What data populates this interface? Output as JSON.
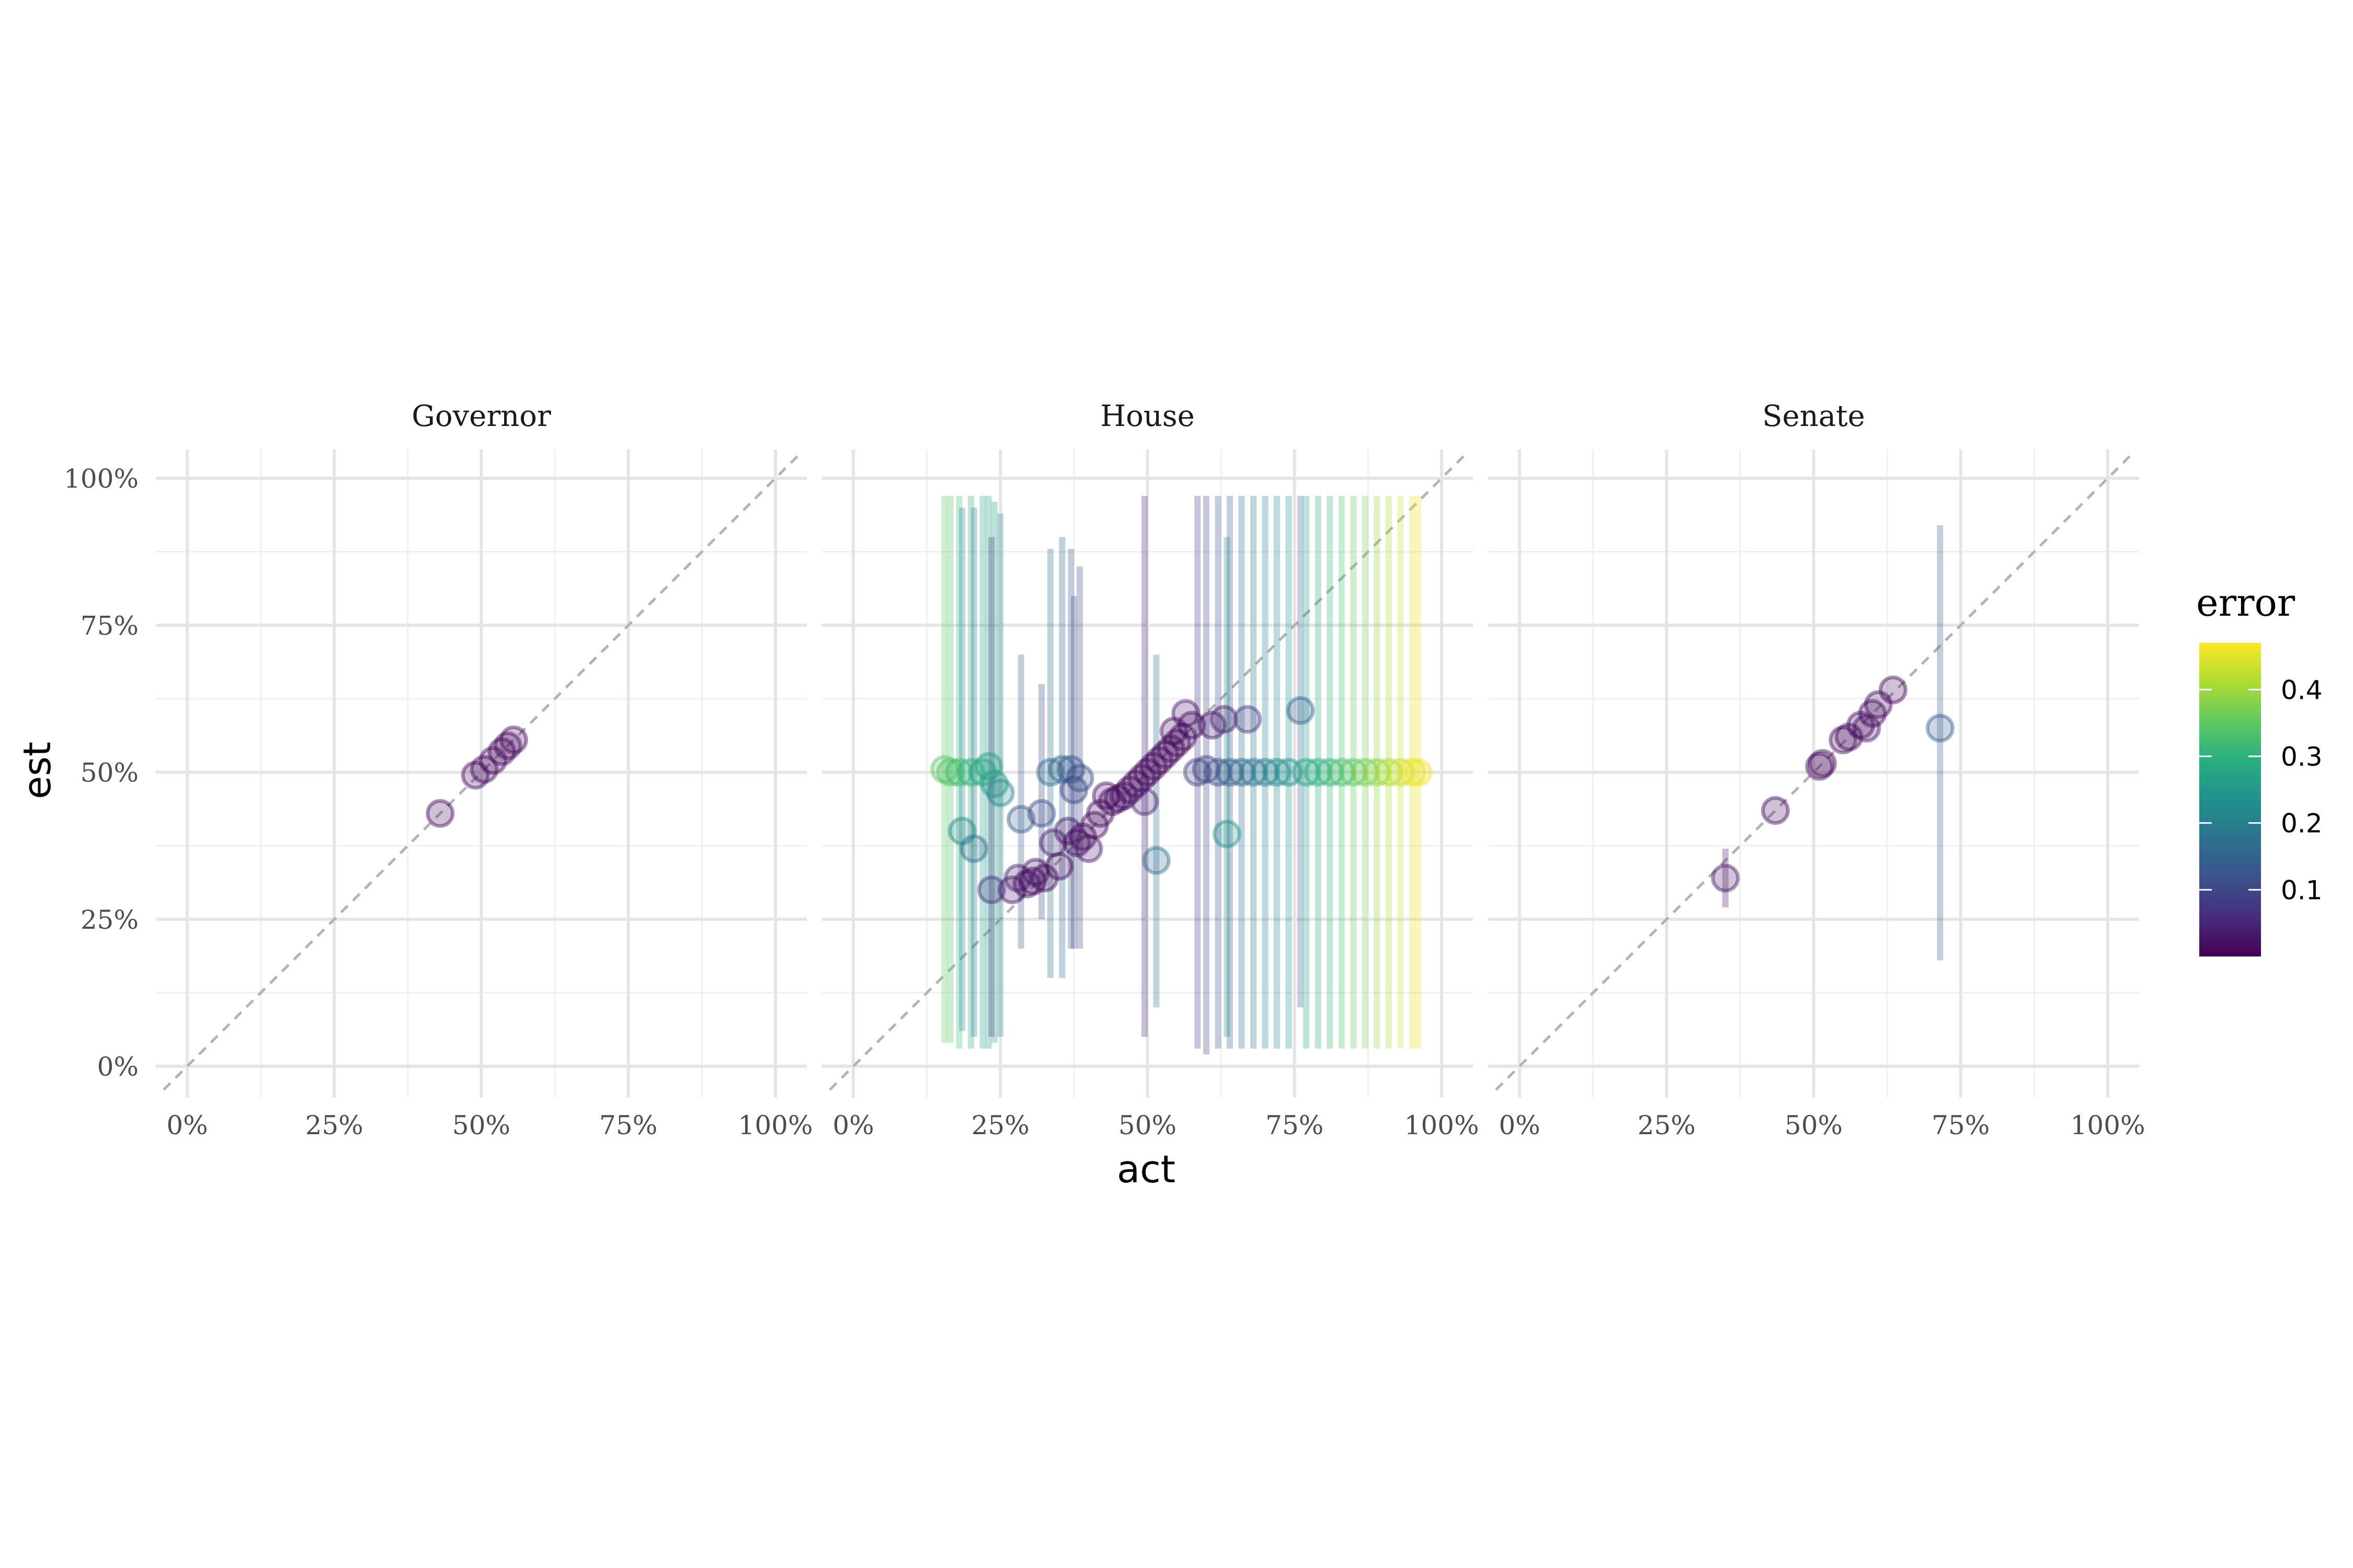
{
  "chart_data": {
    "type": "scatter",
    "x_label": "act",
    "y_label": "est",
    "x_range": [
      0,
      1
    ],
    "y_range": [
      0,
      1
    ],
    "x_ticks": [
      "0%",
      "25%",
      "50%",
      "75%",
      "100%"
    ],
    "y_ticks": [
      "0%",
      "25%",
      "50%",
      "75%",
      "100%"
    ],
    "reference_line": "y = x (dashed)",
    "grid": true,
    "point_alpha": 0.25,
    "facets": [
      {
        "name": "Governor",
        "points": [
          {
            "x": 0.43,
            "y": 0.43,
            "err": 0.01
          },
          {
            "x": 0.49,
            "y": 0.495,
            "err": 0.01
          },
          {
            "x": 0.505,
            "y": 0.505,
            "err": 0.01
          },
          {
            "x": 0.52,
            "y": 0.52,
            "err": 0.01
          },
          {
            "x": 0.535,
            "y": 0.535,
            "err": 0.01
          },
          {
            "x": 0.545,
            "y": 0.545,
            "err": 0.01
          },
          {
            "x": 0.555,
            "y": 0.555,
            "err": 0.01
          }
        ]
      },
      {
        "name": "House",
        "points": [
          {
            "x": 0.155,
            "y": 0.505,
            "err": 0.35,
            "lo": 0.04,
            "hi": 0.97
          },
          {
            "x": 0.165,
            "y": 0.5,
            "err": 0.34,
            "lo": 0.04,
            "hi": 0.97
          },
          {
            "x": 0.18,
            "y": 0.5,
            "err": 0.32,
            "lo": 0.03,
            "hi": 0.97
          },
          {
            "x": 0.185,
            "y": 0.4,
            "err": 0.22,
            "lo": 0.06,
            "hi": 0.95
          },
          {
            "x": 0.2,
            "y": 0.5,
            "err": 0.3,
            "lo": 0.03,
            "hi": 0.97
          },
          {
            "x": 0.205,
            "y": 0.37,
            "err": 0.17,
            "lo": 0.05,
            "hi": 0.95
          },
          {
            "x": 0.22,
            "y": 0.5,
            "err": 0.28,
            "lo": 0.03,
            "hi": 0.97
          },
          {
            "x": 0.23,
            "y": 0.51,
            "err": 0.27,
            "lo": 0.03,
            "hi": 0.97
          },
          {
            "x": 0.235,
            "y": 0.3,
            "err": 0.07,
            "lo": 0.05,
            "hi": 0.9
          },
          {
            "x": 0.24,
            "y": 0.48,
            "err": 0.25,
            "lo": 0.04,
            "hi": 0.96
          },
          {
            "x": 0.25,
            "y": 0.465,
            "err": 0.22,
            "lo": 0.05,
            "hi": 0.94
          },
          {
            "x": 0.27,
            "y": 0.3,
            "err": 0.03
          },
          {
            "x": 0.28,
            "y": 0.32,
            "err": 0.04
          },
          {
            "x": 0.285,
            "y": 0.42,
            "err": 0.14,
            "lo": 0.2,
            "hi": 0.7
          },
          {
            "x": 0.295,
            "y": 0.31,
            "err": 0.02
          },
          {
            "x": 0.305,
            "y": 0.315,
            "err": 0.01
          },
          {
            "x": 0.31,
            "y": 0.33,
            "err": 0.02
          },
          {
            "x": 0.32,
            "y": 0.43,
            "err": 0.11,
            "lo": 0.25,
            "hi": 0.65
          },
          {
            "x": 0.325,
            "y": 0.32,
            "err": 0.01
          },
          {
            "x": 0.335,
            "y": 0.5,
            "err": 0.17,
            "lo": 0.15,
            "hi": 0.88
          },
          {
            "x": 0.34,
            "y": 0.38,
            "err": 0.04
          },
          {
            "x": 0.35,
            "y": 0.34,
            "err": 0.01
          },
          {
            "x": 0.355,
            "y": 0.505,
            "err": 0.15,
            "lo": 0.15,
            "hi": 0.9
          },
          {
            "x": 0.365,
            "y": 0.4,
            "err": 0.03
          },
          {
            "x": 0.37,
            "y": 0.505,
            "err": 0.13,
            "lo": 0.2,
            "hi": 0.88
          },
          {
            "x": 0.375,
            "y": 0.47,
            "err": 0.1,
            "lo": 0.2,
            "hi": 0.8
          },
          {
            "x": 0.38,
            "y": 0.38,
            "err": 0.01
          },
          {
            "x": 0.385,
            "y": 0.49,
            "err": 0.11,
            "lo": 0.2,
            "hi": 0.85
          },
          {
            "x": 0.39,
            "y": 0.39,
            "err": 0.01
          },
          {
            "x": 0.4,
            "y": 0.37,
            "err": 0.03
          },
          {
            "x": 0.41,
            "y": 0.41,
            "err": 0.01
          },
          {
            "x": 0.42,
            "y": 0.43,
            "err": 0.01
          },
          {
            "x": 0.43,
            "y": 0.46,
            "err": 0.02
          },
          {
            "x": 0.44,
            "y": 0.45,
            "err": 0.01
          },
          {
            "x": 0.45,
            "y": 0.455,
            "err": 0.01
          },
          {
            "x": 0.46,
            "y": 0.46,
            "err": 0.01
          },
          {
            "x": 0.47,
            "y": 0.47,
            "err": 0.01
          },
          {
            "x": 0.48,
            "y": 0.48,
            "err": 0.01
          },
          {
            "x": 0.49,
            "y": 0.49,
            "err": 0.01
          },
          {
            "x": 0.495,
            "y": 0.45,
            "err": 0.05,
            "lo": 0.05,
            "hi": 0.97
          },
          {
            "x": 0.5,
            "y": 0.5,
            "err": 0.01
          },
          {
            "x": 0.51,
            "y": 0.51,
            "err": 0.01
          },
          {
            "x": 0.515,
            "y": 0.35,
            "err": 0.17,
            "lo": 0.1,
            "hi": 0.7
          },
          {
            "x": 0.52,
            "y": 0.52,
            "err": 0.01
          },
          {
            "x": 0.53,
            "y": 0.53,
            "err": 0.01
          },
          {
            "x": 0.54,
            "y": 0.54,
            "err": 0.01
          },
          {
            "x": 0.545,
            "y": 0.57,
            "err": 0.02
          },
          {
            "x": 0.55,
            "y": 0.55,
            "err": 0.01
          },
          {
            "x": 0.56,
            "y": 0.56,
            "err": 0.01
          },
          {
            "x": 0.565,
            "y": 0.6,
            "err": 0.03
          },
          {
            "x": 0.575,
            "y": 0.58,
            "err": 0.01
          },
          {
            "x": 0.585,
            "y": 0.5,
            "err": 0.08,
            "lo": 0.03,
            "hi": 0.97
          },
          {
            "x": 0.6,
            "y": 0.505,
            "err": 0.1,
            "lo": 0.02,
            "hi": 0.97
          },
          {
            "x": 0.61,
            "y": 0.58,
            "err": 0.03
          },
          {
            "x": 0.62,
            "y": 0.5,
            "err": 0.12,
            "lo": 0.03,
            "hi": 0.97
          },
          {
            "x": 0.63,
            "y": 0.59,
            "err": 0.04
          },
          {
            "x": 0.635,
            "y": 0.395,
            "err": 0.24,
            "lo": 0.05,
            "hi": 0.9
          },
          {
            "x": 0.64,
            "y": 0.5,
            "err": 0.14,
            "lo": 0.03,
            "hi": 0.97
          },
          {
            "x": 0.66,
            "y": 0.5,
            "err": 0.16,
            "lo": 0.03,
            "hi": 0.97
          },
          {
            "x": 0.67,
            "y": 0.59,
            "err": 0.08
          },
          {
            "x": 0.68,
            "y": 0.5,
            "err": 0.18,
            "lo": 0.03,
            "hi": 0.97
          },
          {
            "x": 0.7,
            "y": 0.5,
            "err": 0.2,
            "lo": 0.03,
            "hi": 0.97
          },
          {
            "x": 0.72,
            "y": 0.5,
            "err": 0.22,
            "lo": 0.03,
            "hi": 0.97
          },
          {
            "x": 0.74,
            "y": 0.5,
            "err": 0.24,
            "lo": 0.03,
            "hi": 0.97
          },
          {
            "x": 0.76,
            "y": 0.605,
            "err": 0.15,
            "lo": 0.1,
            "hi": 0.97
          },
          {
            "x": 0.77,
            "y": 0.5,
            "err": 0.27,
            "lo": 0.03,
            "hi": 0.97
          },
          {
            "x": 0.79,
            "y": 0.5,
            "err": 0.29,
            "lo": 0.03,
            "hi": 0.97
          },
          {
            "x": 0.81,
            "y": 0.5,
            "err": 0.31,
            "lo": 0.03,
            "hi": 0.97
          },
          {
            "x": 0.83,
            "y": 0.5,
            "err": 0.33,
            "lo": 0.03,
            "hi": 0.97
          },
          {
            "x": 0.85,
            "y": 0.5,
            "err": 0.35,
            "lo": 0.03,
            "hi": 0.97
          },
          {
            "x": 0.87,
            "y": 0.5,
            "err": 0.37,
            "lo": 0.03,
            "hi": 0.97
          },
          {
            "x": 0.89,
            "y": 0.5,
            "err": 0.39,
            "lo": 0.03,
            "hi": 0.97
          },
          {
            "x": 0.91,
            "y": 0.5,
            "err": 0.41,
            "lo": 0.03,
            "hi": 0.97
          },
          {
            "x": 0.93,
            "y": 0.5,
            "err": 0.43,
            "lo": 0.03,
            "hi": 0.97
          },
          {
            "x": 0.95,
            "y": 0.5,
            "err": 0.45,
            "lo": 0.03,
            "hi": 0.97
          },
          {
            "x": 0.96,
            "y": 0.5,
            "err": 0.46,
            "lo": 0.03,
            "hi": 0.97
          }
        ]
      },
      {
        "name": "Senate",
        "points": [
          {
            "x": 0.35,
            "y": 0.32,
            "err": 0.03,
            "lo": 0.27,
            "hi": 0.37
          },
          {
            "x": 0.435,
            "y": 0.435,
            "err": 0.01
          },
          {
            "x": 0.51,
            "y": 0.51,
            "err": 0.01
          },
          {
            "x": 0.515,
            "y": 0.515,
            "err": 0.01
          },
          {
            "x": 0.55,
            "y": 0.555,
            "err": 0.01
          },
          {
            "x": 0.56,
            "y": 0.56,
            "err": 0.01
          },
          {
            "x": 0.58,
            "y": 0.58,
            "err": 0.01
          },
          {
            "x": 0.59,
            "y": 0.575,
            "err": 0.02
          },
          {
            "x": 0.6,
            "y": 0.6,
            "err": 0.01
          },
          {
            "x": 0.61,
            "y": 0.615,
            "err": 0.01
          },
          {
            "x": 0.635,
            "y": 0.64,
            "err": 0.01
          },
          {
            "x": 0.715,
            "y": 0.575,
            "err": 0.14,
            "lo": 0.18,
            "hi": 0.92
          }
        ]
      }
    ],
    "legend": {
      "title": "error",
      "position": "right",
      "colormap": "viridis",
      "range": [
        0,
        0.47
      ],
      "ticks": [
        "0.1",
        "0.2",
        "0.3",
        "0.4"
      ],
      "tick_values": [
        0.1,
        0.2,
        0.3,
        0.4
      ]
    }
  }
}
